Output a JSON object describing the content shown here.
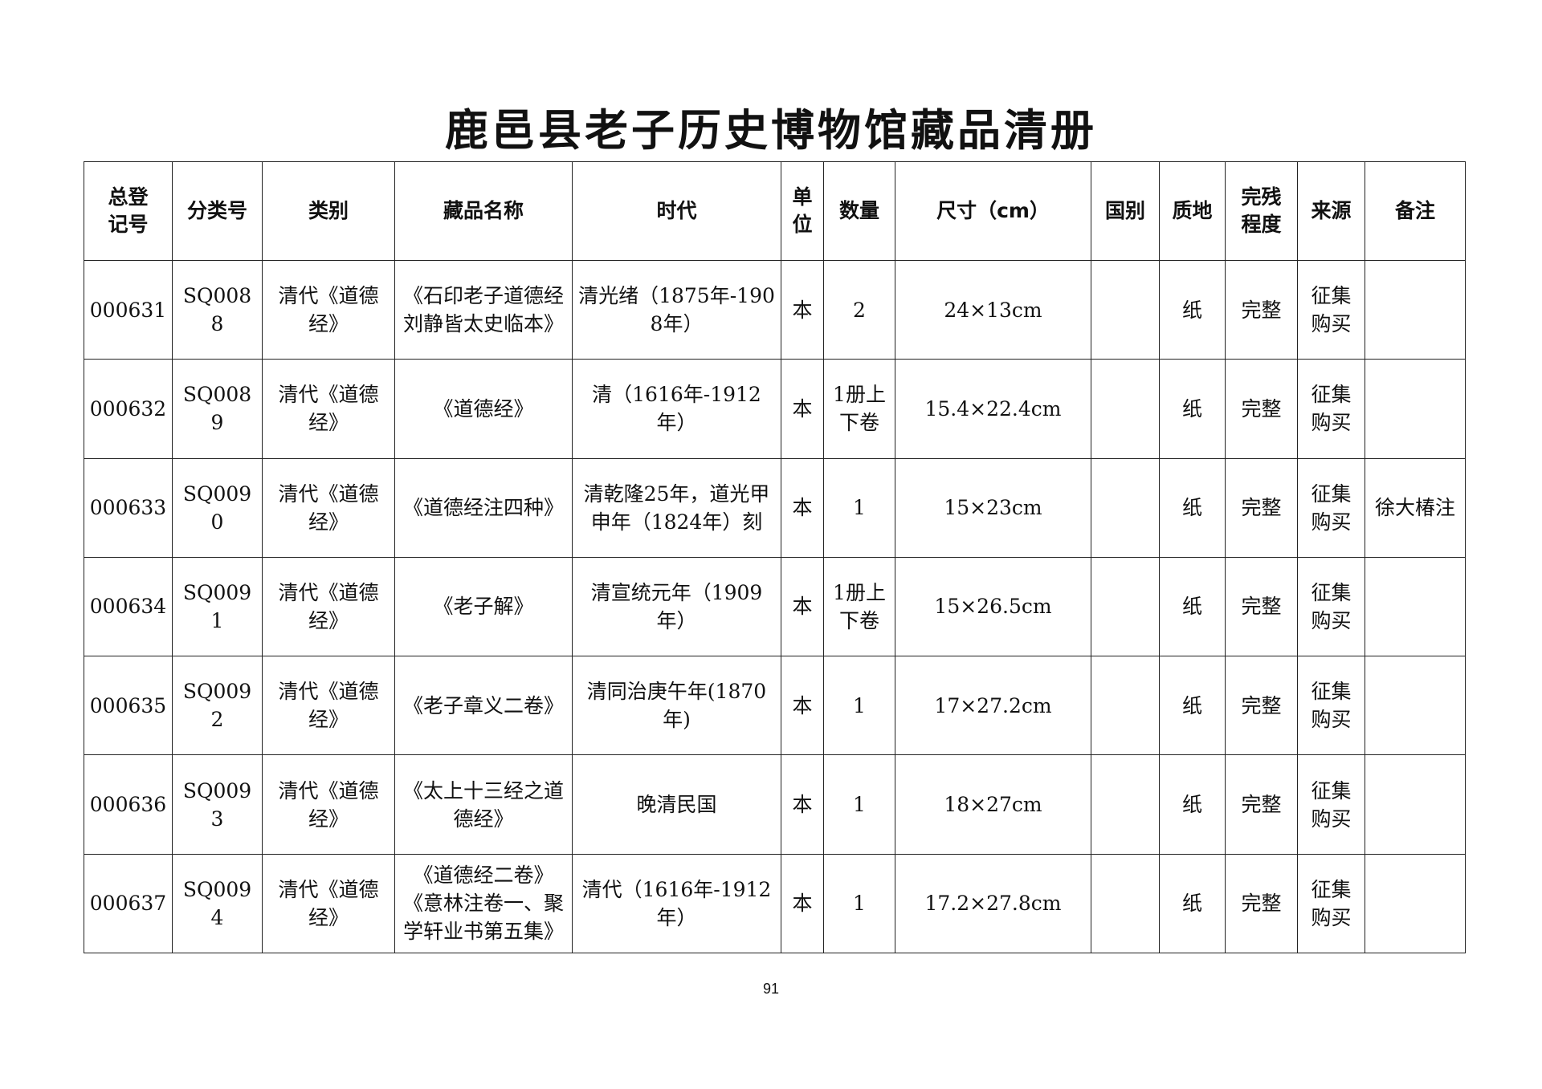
{
  "title": "鹿邑县老子历史博物馆藏品清册",
  "columns": [
    "总登\n记号",
    "分类号",
    "类别",
    "藏品名称",
    "时代",
    "单\n位",
    "数量",
    "尺寸（cm）",
    "国别",
    "质地",
    "完残\n程度",
    "来源",
    "备注"
  ],
  "rows": [
    [
      "000631",
      "SQ0088",
      "清代《道德经》",
      "《石印老子道德经刘静皆太史临本》",
      "清光绪（1875年-1908年）",
      "本",
      "2",
      "24×13cm",
      "",
      "纸",
      "完整",
      "征集购买",
      ""
    ],
    [
      "000632",
      "SQ0089",
      "清代《道德经》",
      "《道德经》",
      "清（1616年-1912年）",
      "本",
      "1册上下卷",
      "15.4×22.4cm",
      "",
      "纸",
      "完整",
      "征集购买",
      ""
    ],
    [
      "000633",
      "SQ0090",
      "清代《道德经》",
      "《道德经注四种》",
      "清乾隆25年，道光甲申年（1824年）刻",
      "本",
      "1",
      "15×23cm",
      "",
      "纸",
      "完整",
      "征集购买",
      "徐大椿注"
    ],
    [
      "000634",
      "SQ0091",
      "清代《道德经》",
      "《老子解》",
      "清宣统元年（1909年）",
      "本",
      "1册上下卷",
      "15×26.5cm",
      "",
      "纸",
      "完整",
      "征集购买",
      ""
    ],
    [
      "000635",
      "SQ0092",
      "清代《道德经》",
      "《老子章义二卷》",
      "清同治庚午年(1870年)",
      "本",
      "1",
      "17×27.2cm",
      "",
      "纸",
      "完整",
      "征集购买",
      ""
    ],
    [
      "000636",
      "SQ0093",
      "清代《道德经》",
      "《太上十三经之道德经》",
      "晚清民国",
      "本",
      "1",
      "18×27cm",
      "",
      "纸",
      "完整",
      "征集购买",
      ""
    ],
    [
      "000637",
      "SQ0094",
      "清代《道德经》",
      "《道德经二卷》《意林注卷一、聚学轩业书第五集》",
      "清代（1616年-1912年）",
      "本",
      "1",
      "17.2×27.8cm",
      "",
      "纸",
      "完整",
      "征集购买",
      ""
    ]
  ],
  "page_number": "91"
}
